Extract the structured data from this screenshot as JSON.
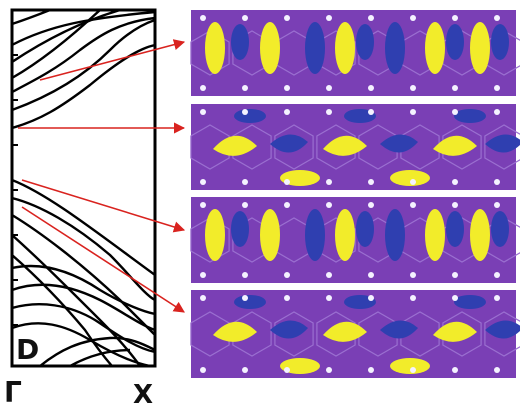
{
  "panel_label": "D",
  "x_axis": {
    "start_label": "Γ",
    "end_label": "X"
  },
  "colors": {
    "band_line": "#000000",
    "arrow": "#d9231f",
    "slab": "#7a3fb5",
    "lobe_yellow": "#f2ec2a",
    "lobe_blue": "#2f3fb0",
    "atom": "#f4f2ff"
  },
  "icons": [
    "arrow-icon",
    "atom-icon"
  ]
}
